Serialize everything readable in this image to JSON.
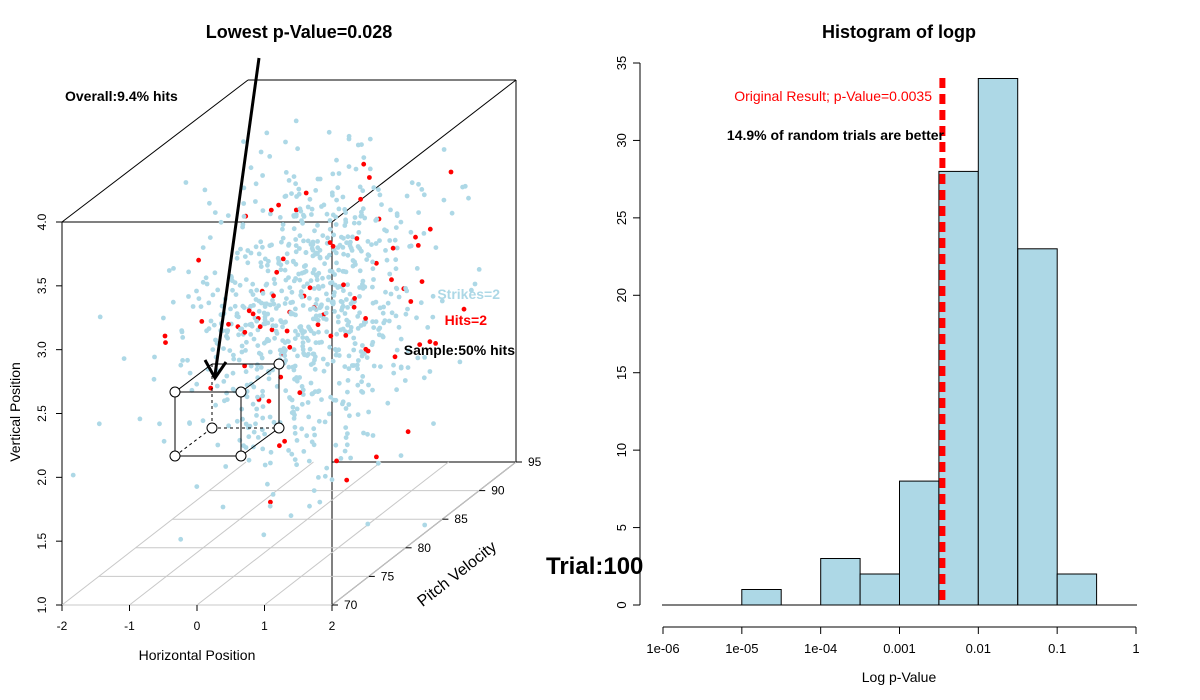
{
  "left_plot": {
    "title": "Lowest p-Value=0.028",
    "overall_label": "Overall:9.4% hits",
    "strikes_label": "Strikes=2",
    "hits_label": "Hits=2",
    "sample_label": "Sample:50% hits",
    "xlabel": "Horizontal Position",
    "ylabel": "Vertical Position",
    "zlabel": "Pitch Velocity",
    "x_ticks": [
      "-2",
      "-1",
      "0",
      "1",
      "2"
    ],
    "y_ticks": [
      "1.0",
      "1.5",
      "2.0",
      "2.5",
      "3.0",
      "3.5",
      "4.0"
    ],
    "z_ticks": [
      "70",
      "75",
      "80",
      "85",
      "90",
      "95"
    ],
    "colors": {
      "strike": "#add8e6",
      "hit": "#ff0000"
    }
  },
  "trial_label": "Trial:100",
  "chart_data": [
    {
      "type": "scatter",
      "subtype": "3d-scatter",
      "title": "Lowest p-Value=0.028",
      "xlabel": "Horizontal Position",
      "ylabel": "Vertical Position",
      "zlabel": "Pitch Velocity",
      "xlim": [
        -2,
        2
      ],
      "ylim": [
        1.0,
        4.0
      ],
      "zlim": [
        70,
        95
      ],
      "series": [
        {
          "name": "Strikes=2",
          "color": "#add8e6"
        },
        {
          "name": "Hits=2",
          "color": "#ff0000"
        }
      ],
      "annotations": [
        "Overall:9.4% hits",
        "Sample:50% hits"
      ]
    },
    {
      "type": "bar",
      "subtype": "histogram",
      "title": "Histogram of logp",
      "xlabel": "Log p-Value",
      "ylabel": "",
      "x_ticks": [
        "1e-06",
        "1e-05",
        "1e-04",
        "0.001",
        "0.01",
        "0.1",
        "1"
      ],
      "y_ticks": [
        "0",
        "5",
        "10",
        "15",
        "20",
        "25",
        "30",
        "35"
      ],
      "ylim": [
        0,
        35
      ],
      "bins_log10": [
        {
          "from": -5.0,
          "to": -4.5,
          "count": 1
        },
        {
          "from": -4.5,
          "to": -4.0,
          "count": 0
        },
        {
          "from": -4.0,
          "to": -3.5,
          "count": 3
        },
        {
          "from": -3.5,
          "to": -3.0,
          "count": 2
        },
        {
          "from": -3.0,
          "to": -2.5,
          "count": 8
        },
        {
          "from": -2.5,
          "to": -2.0,
          "count": 28
        },
        {
          "from": -2.0,
          "to": -1.5,
          "count": 34
        },
        {
          "from": -1.5,
          "to": -1.0,
          "count": 23
        },
        {
          "from": -1.0,
          "to": -0.5,
          "count": 2
        }
      ],
      "reference_line": {
        "label": "Original Result; p-Value=0.0035",
        "value": 0.0035,
        "color": "#ff0000"
      },
      "annotation": "14.9% of random trials are better",
      "bar_color": "#add8e6"
    }
  ]
}
